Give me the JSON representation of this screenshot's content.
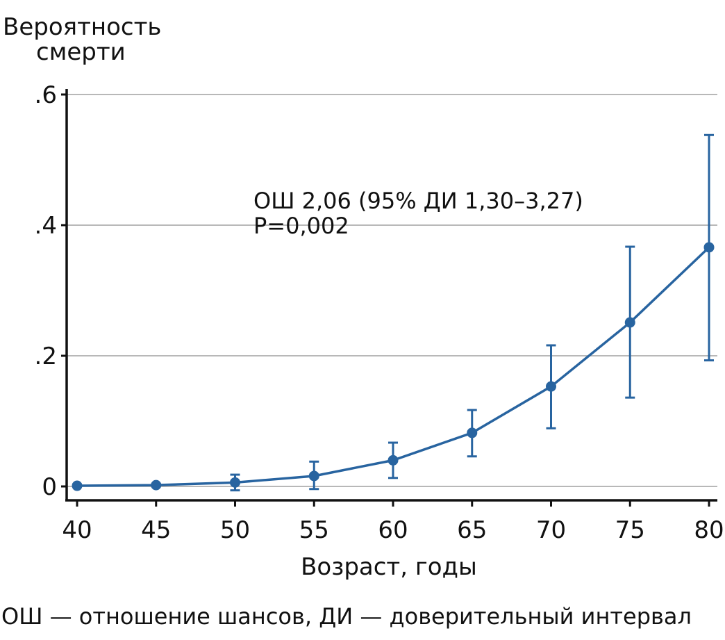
{
  "chart_data": {
    "type": "line",
    "ylabel_line1": "Вероятность",
    "ylabel_line2": "смерти",
    "xlabel": "Возраст, годы",
    "x": [
      40,
      45,
      50,
      55,
      60,
      65,
      70,
      75,
      80
    ],
    "y": [
      0.001,
      0.002,
      0.006,
      0.016,
      0.04,
      0.082,
      0.153,
      0.251,
      0.366
    ],
    "ci_low": [
      0.0,
      0.0,
      -0.006,
      -0.004,
      0.013,
      0.046,
      0.089,
      0.136,
      0.193
    ],
    "ci_high": [
      0.003,
      0.004,
      0.018,
      0.038,
      0.067,
      0.117,
      0.216,
      0.367,
      0.538
    ],
    "xlim": [
      40,
      80
    ],
    "ylim": [
      0,
      0.6
    ],
    "xticks": [
      "40",
      "45",
      "50",
      "55",
      "60",
      "65",
      "70",
      "75",
      "80"
    ],
    "yticks": [
      {
        "value": 0,
        "label": "0"
      },
      {
        "value": 0.2,
        "label": ".2"
      },
      {
        "value": 0.4,
        "label": ".4"
      },
      {
        "value": 0.6,
        "label": ".6"
      }
    ],
    "grid": "horizontal",
    "annotation_line1": "ОШ 2,06 (95% ДИ 1,30–3,27)",
    "annotation_line2": "P=0,002",
    "series_color": "#2864a0"
  },
  "footnote": "ОШ — отношение шансов, ДИ — доверительный интервал"
}
